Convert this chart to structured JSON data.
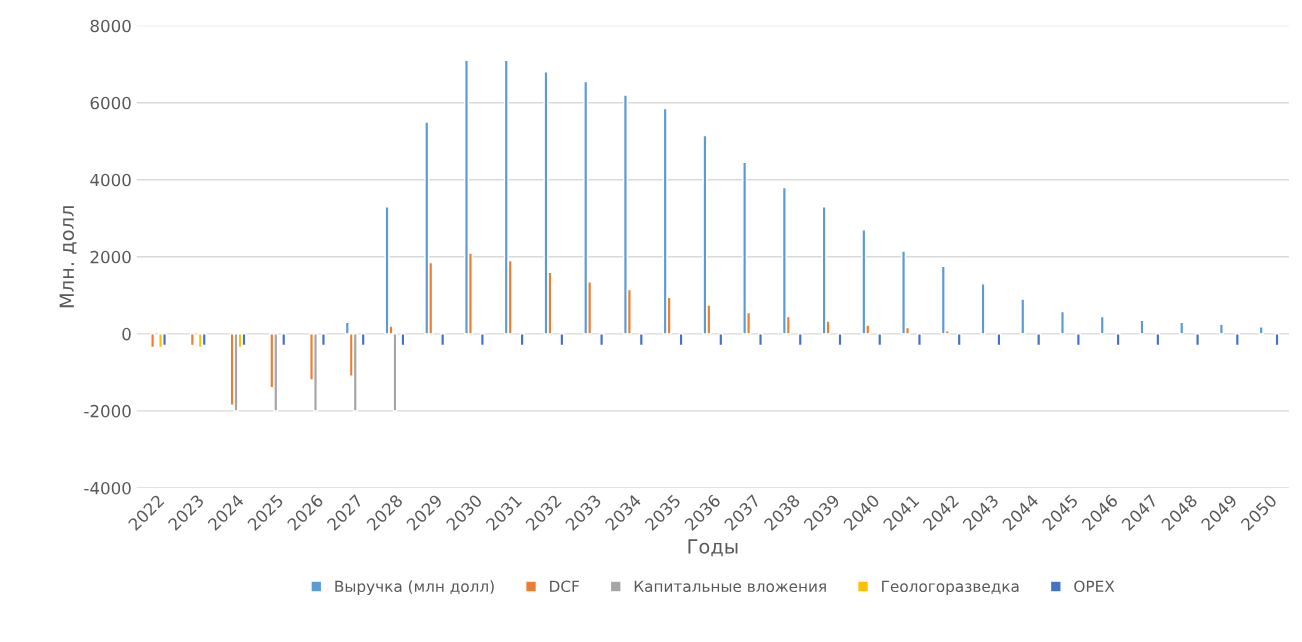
{
  "chart_data": {
    "type": "bar",
    "xlabel": "Годы",
    "ylabel": "Млн. долл",
    "categories": [
      "2022",
      "2023",
      "2024",
      "2025",
      "2026",
      "2027",
      "2028",
      "2029",
      "2030",
      "2031",
      "2032",
      "2033",
      "2034",
      "2035",
      "2036",
      "2037",
      "2038",
      "2039",
      "2040",
      "2041",
      "2042",
      "2043",
      "2044",
      "2045",
      "2046",
      "2047",
      "2048",
      "2049",
      "2050"
    ],
    "series": [
      {
        "name": "Выручка (млн долл)",
        "color": "#5b9bd5",
        "values": [
          null,
          null,
          null,
          null,
          null,
          300,
          3300,
          5500,
          7100,
          7100,
          6800,
          6550,
          6200,
          5850,
          5150,
          4450,
          3800,
          3300,
          2700,
          2150,
          1750,
          1300,
          900,
          580,
          450,
          350,
          300,
          250,
          180
        ]
      },
      {
        "name": "DCF",
        "color": "#ed7d31",
        "values": [
          -350,
          -300,
          -1850,
          -1400,
          -1200,
          -1100,
          200,
          1850,
          2100,
          1900,
          1600,
          1350,
          1150,
          950,
          750,
          550,
          450,
          330,
          230,
          160,
          80,
          null,
          null,
          null,
          null,
          null,
          null,
          null,
          null
        ]
      },
      {
        "name": "Капитальные вложения",
        "color": "#a5a5a5",
        "values": [
          null,
          null,
          -2000,
          -2000,
          -2000,
          -2000,
          -2000,
          null,
          null,
          null,
          null,
          null,
          null,
          null,
          null,
          null,
          null,
          null,
          null,
          null,
          null,
          null,
          null,
          null,
          null,
          null,
          null,
          null,
          null
        ]
      },
      {
        "name": "Геологоразведка",
        "color": "#ffc000",
        "values": [
          -350,
          -350,
          -350,
          null,
          null,
          null,
          null,
          null,
          null,
          null,
          null,
          null,
          null,
          null,
          null,
          null,
          null,
          null,
          null,
          null,
          null,
          null,
          null,
          null,
          null,
          null,
          null,
          null,
          null
        ]
      },
      {
        "name": "OPEX",
        "color": "#4472c4",
        "values": [
          -300,
          -300,
          -300,
          -300,
          -300,
          -300,
          -300,
          -300,
          -300,
          -300,
          -300,
          -300,
          -300,
          -300,
          -300,
          -300,
          -300,
          -300,
          -300,
          -300,
          -300,
          -300,
          -300,
          -300,
          -300,
          -300,
          -300,
          -300,
          -300
        ]
      }
    ],
    "ylim": [
      -4000,
      8000
    ],
    "yticks": [
      -4000,
      -2000,
      0,
      2000,
      4000,
      6000,
      8000
    ],
    "grid": "y",
    "legend": "bottom"
  }
}
